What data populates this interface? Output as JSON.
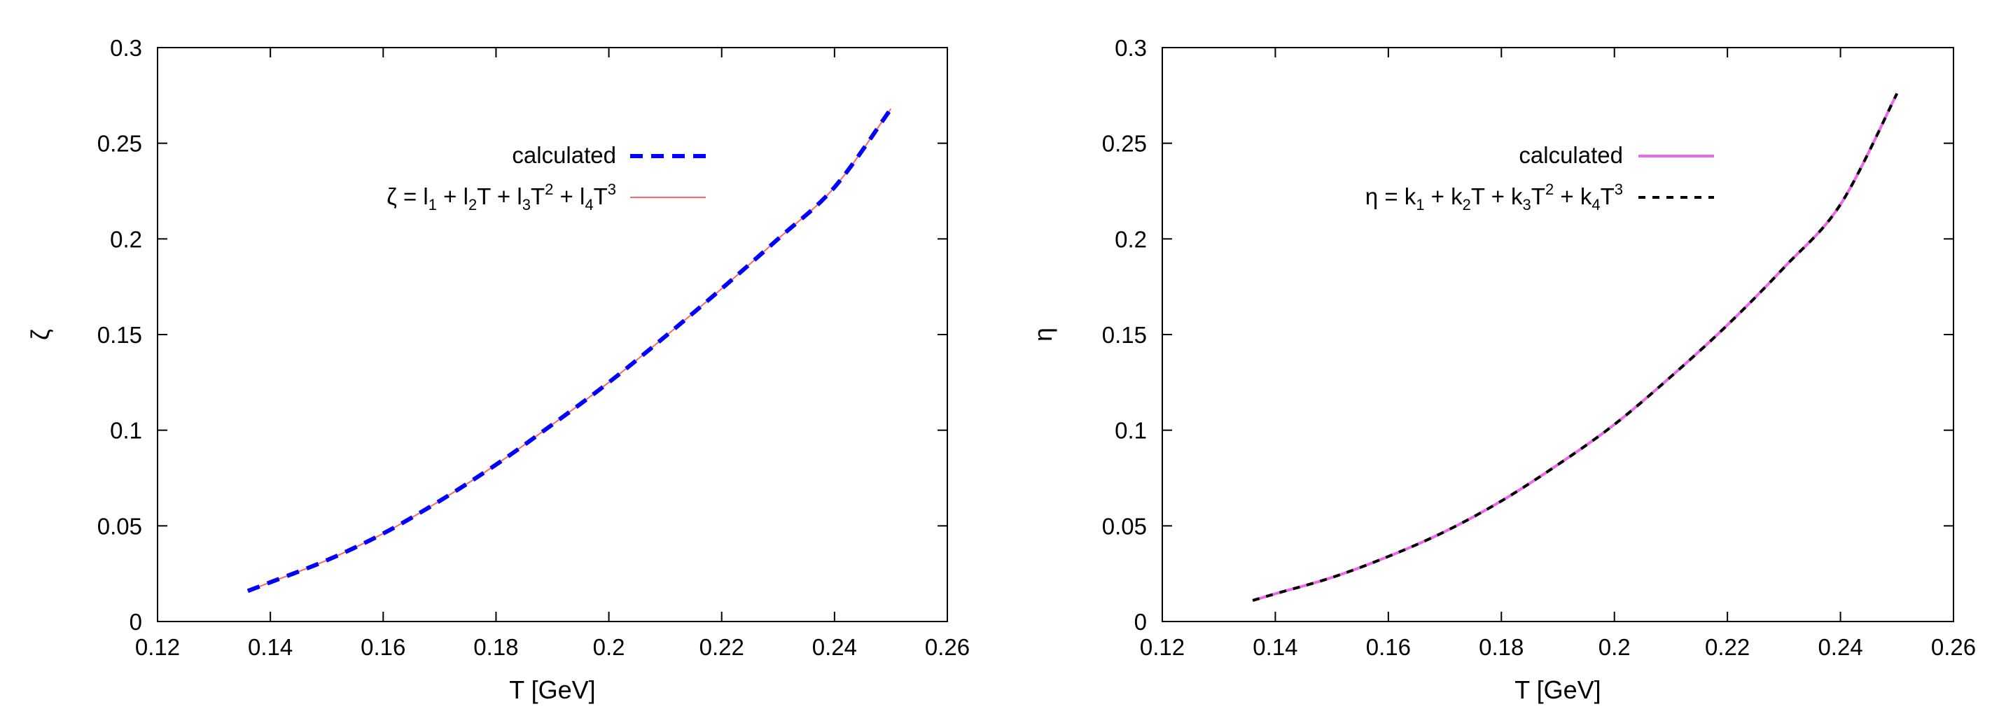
{
  "chart_data": [
    {
      "type": "line",
      "xlabel": "T [GeV]",
      "ylabel": "ζ",
      "xlim": [
        0.12,
        0.26
      ],
      "ylim": [
        0,
        0.3
      ],
      "xticks": [
        "0.12",
        "0.14",
        "0.16",
        "0.18",
        "0.2",
        "0.22",
        "0.24",
        "0.26"
      ],
      "yticks": [
        "0",
        "0.05",
        "0.1",
        "0.15",
        "0.2",
        "0.25",
        "0.3"
      ],
      "legend_position": "top-right",
      "series": [
        {
          "name": "calculated",
          "color": "#0000ff",
          "style": "dashed",
          "x": [
            0.136,
            0.14,
            0.15,
            0.16,
            0.17,
            0.18,
            0.19,
            0.2,
            0.21,
            0.22,
            0.23,
            0.24,
            0.25
          ],
          "y": [
            0.016,
            0.0205,
            0.032,
            0.046,
            0.063,
            0.082,
            0.103,
            0.125,
            0.149,
            0.174,
            0.2,
            0.227,
            0.268
          ]
        },
        {
          "name": "ζ = l1 + l2T + l3T2 + l4T3",
          "legend_parts": [
            {
              "t": "ζ = l"
            },
            {
              "t": "1",
              "sub": true
            },
            {
              "t": " + l"
            },
            {
              "t": "2",
              "sub": true
            },
            {
              "t": "T + l"
            },
            {
              "t": "3",
              "sub": true
            },
            {
              "t": "T"
            },
            {
              "t": "2",
              "sup": true
            },
            {
              "t": " + l"
            },
            {
              "t": "4",
              "sub": true
            },
            {
              "t": "T"
            },
            {
              "t": "3",
              "sup": true
            }
          ],
          "color": "#ff6666",
          "style": "solid",
          "x": [
            0.136,
            0.14,
            0.15,
            0.16,
            0.17,
            0.18,
            0.19,
            0.2,
            0.21,
            0.22,
            0.23,
            0.24,
            0.25
          ],
          "y": [
            0.016,
            0.0205,
            0.032,
            0.046,
            0.063,
            0.082,
            0.103,
            0.125,
            0.149,
            0.174,
            0.2,
            0.227,
            0.268
          ]
        }
      ]
    },
    {
      "type": "line",
      "xlabel": "T [GeV]",
      "ylabel": "η",
      "xlim": [
        0.12,
        0.26
      ],
      "ylim": [
        0,
        0.3
      ],
      "xticks": [
        "0.12",
        "0.14",
        "0.16",
        "0.18",
        "0.2",
        "0.22",
        "0.24",
        "0.26"
      ],
      "yticks": [
        "0",
        "0.05",
        "0.1",
        "0.15",
        "0.2",
        "0.25",
        "0.3"
      ],
      "legend_position": "top-right",
      "series": [
        {
          "name": "calculated",
          "color": "#ee66ee",
          "style": "solid",
          "x": [
            0.136,
            0.14,
            0.15,
            0.16,
            0.17,
            0.18,
            0.19,
            0.2,
            0.21,
            0.22,
            0.23,
            0.24,
            0.25
          ],
          "y": [
            0.011,
            0.0145,
            0.023,
            0.034,
            0.047,
            0.063,
            0.082,
            0.103,
            0.128,
            0.155,
            0.185,
            0.218,
            0.276
          ]
        },
        {
          "name": "η = k1 + k2T + k3T2 + k4T3",
          "legend_parts": [
            {
              "t": "η = k"
            },
            {
              "t": "1",
              "sub": true
            },
            {
              "t": " + k"
            },
            {
              "t": "2",
              "sub": true
            },
            {
              "t": "T + k"
            },
            {
              "t": "3",
              "sub": true
            },
            {
              "t": "T"
            },
            {
              "t": "2",
              "sup": true
            },
            {
              "t": " + k"
            },
            {
              "t": "4",
              "sub": true
            },
            {
              "t": "T"
            },
            {
              "t": "3",
              "sup": true
            }
          ],
          "color": "#000000",
          "style": "dashed",
          "x": [
            0.136,
            0.14,
            0.15,
            0.16,
            0.17,
            0.18,
            0.19,
            0.2,
            0.21,
            0.22,
            0.23,
            0.24,
            0.25
          ],
          "y": [
            0.011,
            0.0145,
            0.023,
            0.034,
            0.047,
            0.063,
            0.082,
            0.103,
            0.128,
            0.155,
            0.185,
            0.218,
            0.276
          ]
        }
      ]
    }
  ]
}
